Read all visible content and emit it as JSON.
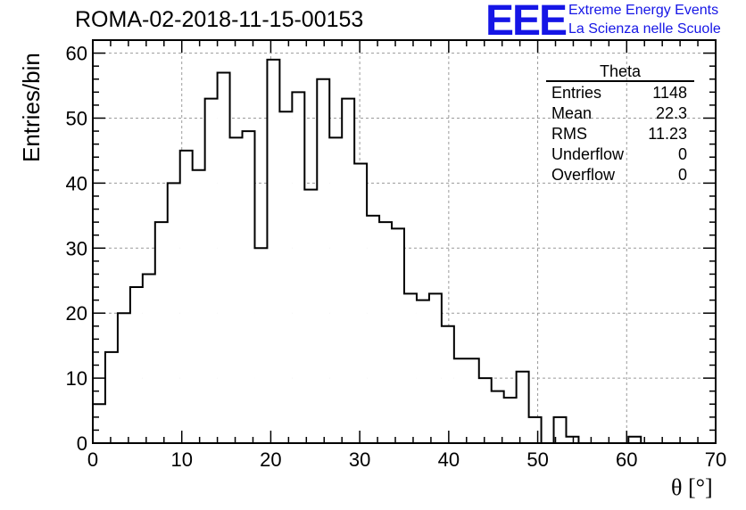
{
  "header": {
    "run_title": "ROMA-02-2018-11-15-00153",
    "logo_text": "EEE",
    "banner_line1": "Extreme Energy Events",
    "banner_line2": "La Scienza nelle Scuole"
  },
  "stats_box": {
    "title": "Theta",
    "rows": [
      {
        "label": "Entries",
        "value": "1148"
      },
      {
        "label": "Mean",
        "value": "22.3"
      },
      {
        "label": "RMS",
        "value": "11.23"
      },
      {
        "label": "Underflow",
        "value": "0"
      },
      {
        "label": "Overflow",
        "value": "0"
      }
    ]
  },
  "colors": {
    "logo": "#1515e6",
    "line": "#000000",
    "grid": "#9a9a9a"
  },
  "chart_data": {
    "type": "bar",
    "style": "step-histogram",
    "title": "ROMA-02-2018-11-15-00153",
    "xlabel": "θ [°]",
    "ylabel": "Entries/bin",
    "xlim": [
      0,
      70
    ],
    "ylim": [
      0,
      62
    ],
    "bin_width": 1.4,
    "grid": true,
    "x_ticks": [
      0,
      10,
      20,
      30,
      40,
      50,
      60,
      70
    ],
    "y_ticks": [
      0,
      10,
      20,
      30,
      40,
      50,
      60
    ],
    "values": [
      6,
      14,
      20,
      24,
      26,
      34,
      40,
      45,
      42,
      53,
      57,
      47,
      48,
      30,
      59,
      51,
      54,
      39,
      56,
      47,
      53,
      43,
      35,
      34,
      33,
      23,
      22,
      23,
      18,
      13,
      13,
      10,
      8,
      7,
      11,
      4,
      0,
      4,
      1,
      0,
      0,
      0,
      0,
      1,
      0,
      0,
      0,
      0,
      0,
      0
    ]
  }
}
